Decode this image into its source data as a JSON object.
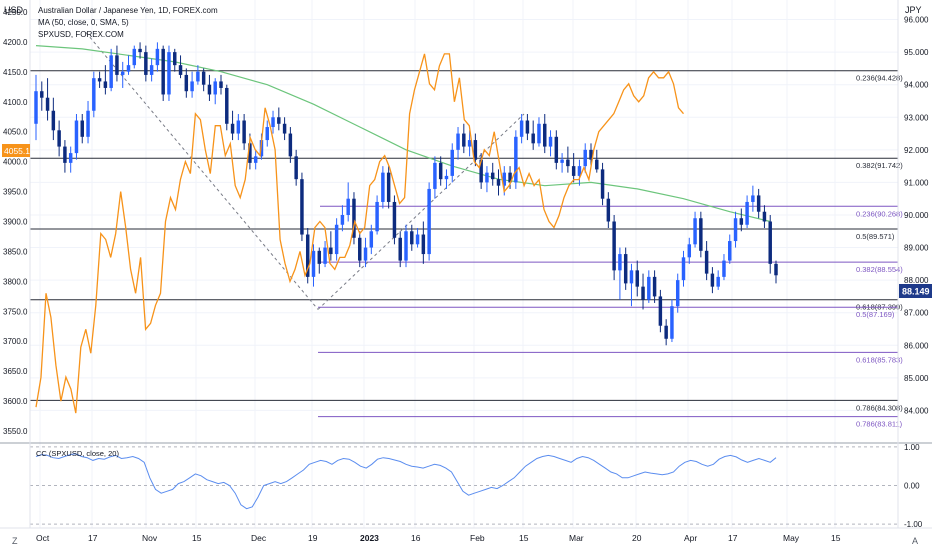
{
  "header": {
    "left_currency": "USD",
    "right_currency": "JPY",
    "title": "Australian Dollar / Japanese Yen, 1D, FOREX.com",
    "study1": "MA (50, close, 0, SMA, 5)",
    "study2": "SPXUSD, FOREX.COM"
  },
  "colors": {
    "up": "#2962ff",
    "down": "#0d2b7e",
    "spx": "#f7931a",
    "ma": "#6cc57c",
    "fib_black": "#2a2e39",
    "fib_purple": "#7e57c2",
    "cc": "#5b8def",
    "last_price_bg": "#1e3a8a",
    "spx_label_bg": "#f7931a"
  },
  "left_axis": {
    "ticks": [
      "4250.0",
      "4200.0",
      "4150.0",
      "4100.0",
      "4050.0",
      "4000.0",
      "3950.0",
      "3900.0",
      "3850.0",
      "3800.0",
      "3750.0",
      "3700.0",
      "3650.0",
      "3600.0",
      "3550.0"
    ],
    "current_label": "4055.1"
  },
  "right_axis": {
    "ticks": [
      "96.000",
      "95.000",
      "94.000",
      "93.000",
      "92.000",
      "91.000",
      "90.000",
      "89.000",
      "88.000",
      "87.000",
      "86.000",
      "85.000",
      "84.000"
    ],
    "current_label": "88.149"
  },
  "fib_labels": {
    "black": [
      "0.236(94.428)",
      "0.382(91.742)",
      "0.5(89.571)",
      "0.618(87.399)",
      "0.786(84.308)"
    ],
    "purple": [
      "0.236(90.268)",
      "0.382(88.554)",
      "0.5(87.169)",
      "0.618(85.783)",
      "0.786(83.811)"
    ]
  },
  "oscillator": {
    "label": "CC (SPXUSD, close, 20)",
    "ticks": [
      "1.00",
      "0.00",
      "-1.00"
    ]
  },
  "x_axis": {
    "labels": [
      "Oct",
      "17",
      "Nov",
      "15",
      "Dec",
      "19",
      "2023",
      "16",
      "Feb",
      "15",
      "Mar",
      "20",
      "Apr",
      "17",
      "May",
      "15"
    ]
  },
  "corner": {
    "left": "Z",
    "right": "A"
  },
  "chart_data": {
    "type": "candlestick",
    "symbol": "AUDJPY",
    "timeframe": "1D",
    "period": "Oct 2022 - Apr 2023",
    "y_right_range": [
      83.0,
      96.6
    ],
    "y_left_range": [
      3530,
      4270
    ],
    "last_price": 88.149,
    "spx_last": 4055.1,
    "candles": [
      [
        92.8,
        94.3,
        92.3,
        93.8
      ],
      [
        93.8,
        94.1,
        93.2,
        93.6
      ],
      [
        93.6,
        94.2,
        92.9,
        93.2
      ],
      [
        93.2,
        93.6,
        92.3,
        92.6
      ],
      [
        92.6,
        92.9,
        91.8,
        92.1
      ],
      [
        92.1,
        92.3,
        91.3,
        91.6
      ],
      [
        91.6,
        92.1,
        91.3,
        91.9
      ],
      [
        91.9,
        93.1,
        91.7,
        92.9
      ],
      [
        92.9,
        93.1,
        92.2,
        92.4
      ],
      [
        92.4,
        93.5,
        92.2,
        93.2
      ],
      [
        93.2,
        94.4,
        93.0,
        94.2
      ],
      [
        94.2,
        94.4,
        93.9,
        94.1
      ],
      [
        94.1,
        94.6,
        93.7,
        93.9
      ],
      [
        93.9,
        95.1,
        93.8,
        94.9
      ],
      [
        94.9,
        95.2,
        94.1,
        94.3
      ],
      [
        94.3,
        94.7,
        93.9,
        94.4
      ],
      [
        94.4,
        94.9,
        94.3,
        94.6
      ],
      [
        94.6,
        95.2,
        94.5,
        95.1
      ],
      [
        95.1,
        95.3,
        94.8,
        95.0
      ],
      [
        95.0,
        95.2,
        94.1,
        94.3
      ],
      [
        94.3,
        94.8,
        94.1,
        94.6
      ],
      [
        94.6,
        95.3,
        94.4,
        95.1
      ],
      [
        95.1,
        95.2,
        93.5,
        93.7
      ],
      [
        93.7,
        95.2,
        93.5,
        95.0
      ],
      [
        95.0,
        95.1,
        94.4,
        94.6
      ],
      [
        94.6,
        94.9,
        94.2,
        94.3
      ],
      [
        94.3,
        94.5,
        93.6,
        93.8
      ],
      [
        93.8,
        94.4,
        93.6,
        94.1
      ],
      [
        94.1,
        94.6,
        94.0,
        94.4
      ],
      [
        94.4,
        94.5,
        93.8,
        94.0
      ],
      [
        94.0,
        94.3,
        93.5,
        93.7
      ],
      [
        93.7,
        94.2,
        93.4,
        94.1
      ],
      [
        94.1,
        94.3,
        93.7,
        93.9
      ],
      [
        93.9,
        94.0,
        92.6,
        92.8
      ],
      [
        92.8,
        93.2,
        92.3,
        92.5
      ],
      [
        92.5,
        93.1,
        92.3,
        92.9
      ],
      [
        92.9,
        93.1,
        92.0,
        92.2
      ],
      [
        92.2,
        92.5,
        91.4,
        91.6
      ],
      [
        91.6,
        92.0,
        91.4,
        91.8
      ],
      [
        91.8,
        92.5,
        91.7,
        92.3
      ],
      [
        92.3,
        92.9,
        92.1,
        92.7
      ],
      [
        92.7,
        93.2,
        92.5,
        93.0
      ],
      [
        93.0,
        93.3,
        92.6,
        92.8
      ],
      [
        92.8,
        93.0,
        92.3,
        92.5
      ],
      [
        92.5,
        92.7,
        91.6,
        91.8
      ],
      [
        91.8,
        92.0,
        90.9,
        91.1
      ],
      [
        91.1,
        91.3,
        89.2,
        89.4
      ],
      [
        89.4,
        89.6,
        87.9,
        88.1
      ],
      [
        88.1,
        89.1,
        87.8,
        88.9
      ],
      [
        88.9,
        89.0,
        88.2,
        88.5
      ],
      [
        88.5,
        89.2,
        88.4,
        89.0
      ],
      [
        89.0,
        89.5,
        88.6,
        88.8
      ],
      [
        88.8,
        89.9,
        88.6,
        89.7
      ],
      [
        89.7,
        90.3,
        89.5,
        90.0
      ],
      [
        90.0,
        91.0,
        89.8,
        90.5
      ],
      [
        90.5,
        90.7,
        89.1,
        89.3
      ],
      [
        89.3,
        89.5,
        88.4,
        88.6
      ],
      [
        88.6,
        89.3,
        88.4,
        89.0
      ],
      [
        89.0,
        89.7,
        88.8,
        89.5
      ],
      [
        89.5,
        90.6,
        89.4,
        90.4
      ],
      [
        90.4,
        91.5,
        90.2,
        91.3
      ],
      [
        91.3,
        91.5,
        90.2,
        90.4
      ],
      [
        90.4,
        90.6,
        89.1,
        89.3
      ],
      [
        89.3,
        89.5,
        88.4,
        88.6
      ],
      [
        88.6,
        89.7,
        88.4,
        89.5
      ],
      [
        89.5,
        89.7,
        88.9,
        89.1
      ],
      [
        89.1,
        89.6,
        89.0,
        89.4
      ],
      [
        89.4,
        89.8,
        88.5,
        88.8
      ],
      [
        88.8,
        91.0,
        88.6,
        90.8
      ],
      [
        90.8,
        91.8,
        90.5,
        91.6
      ],
      [
        91.6,
        91.8,
        90.9,
        91.1
      ],
      [
        91.1,
        91.4,
        90.8,
        91.2
      ],
      [
        91.2,
        92.2,
        91.0,
        92.0
      ],
      [
        92.0,
        92.7,
        91.7,
        92.5
      ],
      [
        92.5,
        92.8,
        91.9,
        92.1
      ],
      [
        92.1,
        92.6,
        91.8,
        92.3
      ],
      [
        92.3,
        92.5,
        91.5,
        91.7
      ],
      [
        91.7,
        91.9,
        90.8,
        91.0
      ],
      [
        91.0,
        91.5,
        90.7,
        91.3
      ],
      [
        91.3,
        91.6,
        90.9,
        91.1
      ],
      [
        91.1,
        91.4,
        90.6,
        90.9
      ],
      [
        90.9,
        91.5,
        90.6,
        91.3
      ],
      [
        91.3,
        91.5,
        90.8,
        91.0
      ],
      [
        91.0,
        92.6,
        90.8,
        92.4
      ],
      [
        92.4,
        93.1,
        92.2,
        92.9
      ],
      [
        92.9,
        93.1,
        92.3,
        92.5
      ],
      [
        92.5,
        92.9,
        92.0,
        92.2
      ],
      [
        92.2,
        93.0,
        92.1,
        92.8
      ],
      [
        92.8,
        93.1,
        91.9,
        92.1
      ],
      [
        92.1,
        92.6,
        91.8,
        92.4
      ],
      [
        92.4,
        92.6,
        91.4,
        91.6
      ],
      [
        91.6,
        91.9,
        91.3,
        91.7
      ],
      [
        91.7,
        92.1,
        91.3,
        91.5
      ],
      [
        91.5,
        91.9,
        91.0,
        91.2
      ],
      [
        91.2,
        91.7,
        90.9,
        91.5
      ],
      [
        91.5,
        92.2,
        91.3,
        92.0
      ],
      [
        92.0,
        92.2,
        91.5,
        91.7
      ],
      [
        91.7,
        92.0,
        91.3,
        91.4
      ],
      [
        91.4,
        91.6,
        90.3,
        90.5
      ],
      [
        90.5,
        90.7,
        89.6,
        89.8
      ],
      [
        89.8,
        90.0,
        88.0,
        88.3
      ],
      [
        88.3,
        89.0,
        87.4,
        88.8
      ],
      [
        88.8,
        89.0,
        87.7,
        87.9
      ],
      [
        87.9,
        88.5,
        87.2,
        88.3
      ],
      [
        88.3,
        88.6,
        87.5,
        87.8
      ],
      [
        87.8,
        88.2,
        87.1,
        87.4
      ],
      [
        87.4,
        88.3,
        87.3,
        88.1
      ],
      [
        88.1,
        88.3,
        87.3,
        87.5
      ],
      [
        87.5,
        87.7,
        86.4,
        86.6
      ],
      [
        86.6,
        86.8,
        86.0,
        86.2
      ],
      [
        86.2,
        87.4,
        86.1,
        87.2
      ],
      [
        87.2,
        88.2,
        87.0,
        88.0
      ],
      [
        88.0,
        88.9,
        87.8,
        88.7
      ],
      [
        88.7,
        89.3,
        88.5,
        89.1
      ],
      [
        89.1,
        90.1,
        89.0,
        89.9
      ],
      [
        89.9,
        90.1,
        88.7,
        88.9
      ],
      [
        88.9,
        89.2,
        88.0,
        88.2
      ],
      [
        88.2,
        88.4,
        87.6,
        87.8
      ],
      [
        87.8,
        88.3,
        87.7,
        88.1
      ],
      [
        88.1,
        88.8,
        88.0,
        88.6
      ],
      [
        88.6,
        89.4,
        88.5,
        89.2
      ],
      [
        89.2,
        90.1,
        89.0,
        89.9
      ],
      [
        89.9,
        90.2,
        89.5,
        89.7
      ],
      [
        89.7,
        90.6,
        89.6,
        90.4
      ],
      [
        90.4,
        90.9,
        90.1,
        90.6
      ],
      [
        90.6,
        90.8,
        89.9,
        90.1
      ],
      [
        90.1,
        90.3,
        89.6,
        89.8
      ],
      [
        89.8,
        90.0,
        88.2,
        88.5
      ],
      [
        88.5,
        88.6,
        87.9,
        88.149
      ]
    ],
    "spx_series": [
      3590,
      3640,
      3780,
      3740,
      3660,
      3600,
      3640,
      3620,
      3580,
      3690,
      3720,
      3680,
      3760,
      3880,
      3870,
      3840,
      3880,
      3950,
      3890,
      3820,
      3780,
      3840,
      3720,
      3730,
      3760,
      3780,
      3900,
      3940,
      3920,
      3970,
      4000,
      3980,
      4080,
      4070,
      4020,
      3980,
      4060,
      4060,
      4010,
      4030,
      3960,
      3940,
      3970,
      4040,
      4020,
      4010,
      4090,
      4060,
      4020,
      3870,
      3830,
      3800,
      3820,
      3850,
      3810,
      3830,
      3890,
      3900,
      3890,
      3830,
      3820,
      3840,
      3840,
      3860,
      3900,
      3880,
      3890,
      3960,
      3970,
      4000,
      4010,
      3990,
      3960,
      3930,
      3940,
      4080,
      4120,
      4150,
      4180,
      4130,
      4120,
      4160,
      4180,
      4180,
      4100,
      4140,
      4070,
      4060,
      4000,
      3990,
      4020,
      4010,
      4050,
      4000,
      3950,
      3960,
      3980,
      3990,
      3960,
      3980,
      3960,
      3970,
      3920,
      3900,
      3890,
      3910,
      3940,
      3960,
      3970,
      3970,
      3990,
      3970,
      4020,
      4050,
      4060,
      4070,
      4080,
      4100,
      4120,
      4130,
      4110,
      4100,
      4110,
      4140,
      4150,
      4140,
      4140,
      4150,
      4130,
      4090,
      4080
    ],
    "spx_x_start": 0,
    "spx_x_end": 112,
    "ma_series": [
      [
        0,
        95.2
      ],
      [
        8,
        95.1
      ],
      [
        16,
        94.9
      ],
      [
        24,
        94.7
      ],
      [
        32,
        94.4
      ],
      [
        40,
        94.0
      ],
      [
        48,
        93.4
      ],
      [
        56,
        92.7
      ],
      [
        64,
        92.0
      ],
      [
        72,
        91.5
      ],
      [
        80,
        91.1
      ],
      [
        88,
        90.9
      ],
      [
        96,
        91.0
      ],
      [
        104,
        90.8
      ],
      [
        112,
        90.5
      ],
      [
        120,
        90.1
      ],
      [
        127,
        89.8
      ]
    ],
    "fib_black_levels": [
      94.428,
      91.742,
      89.571,
      87.399,
      84.308
    ],
    "fib_purple_levels": [
      90.268,
      88.554,
      87.169,
      85.783,
      83.811
    ],
    "correlation": [
      0.75,
      0.8,
      0.78,
      0.72,
      0.7,
      0.75,
      0.8,
      0.82,
      0.75,
      0.72,
      0.65,
      0.7,
      0.68,
      0.74,
      0.78,
      0.7,
      0.72,
      0.75,
      0.7,
      0.6,
      0.2,
      -0.1,
      -0.2,
      -0.15,
      -0.1,
      0.05,
      0.1,
      0.2,
      0.3,
      0.25,
      0.15,
      0.1,
      0.05,
      0.08,
      0.0,
      -0.2,
      -0.5,
      -0.6,
      -0.55,
      -0.3,
      0.0,
      0.05,
      0.1,
      0.05,
      0.1,
      0.2,
      0.3,
      0.4,
      0.55,
      0.6,
      0.65,
      0.62,
      0.55,
      0.65,
      0.7,
      0.68,
      0.6,
      0.5,
      0.45,
      0.55,
      0.68,
      0.72,
      0.7,
      0.66,
      0.62,
      0.55,
      0.5,
      0.48,
      0.45,
      0.5,
      0.55,
      0.52,
      0.45,
      0.35,
      0.1,
      -0.15,
      -0.25,
      -0.2,
      -0.15,
      -0.1,
      -0.05,
      -0.08,
      0.0,
      0.1,
      0.2,
      0.35,
      0.5,
      0.6,
      0.7,
      0.75,
      0.78,
      0.75,
      0.7,
      0.65,
      0.6,
      0.7,
      0.75,
      0.72,
      0.65,
      0.55,
      0.45,
      0.35,
      0.3,
      0.2,
      0.2,
      0.25,
      0.3,
      0.35,
      0.32,
      0.3,
      0.28,
      0.3,
      0.35,
      0.5,
      0.6,
      0.65,
      0.62,
      0.55,
      0.5,
      0.55,
      0.68,
      0.75,
      0.78,
      0.74,
      0.66,
      0.6,
      0.65,
      0.7,
      0.65,
      0.6,
      0.72
    ],
    "osc_range": [
      -1.1,
      1.1
    ]
  }
}
